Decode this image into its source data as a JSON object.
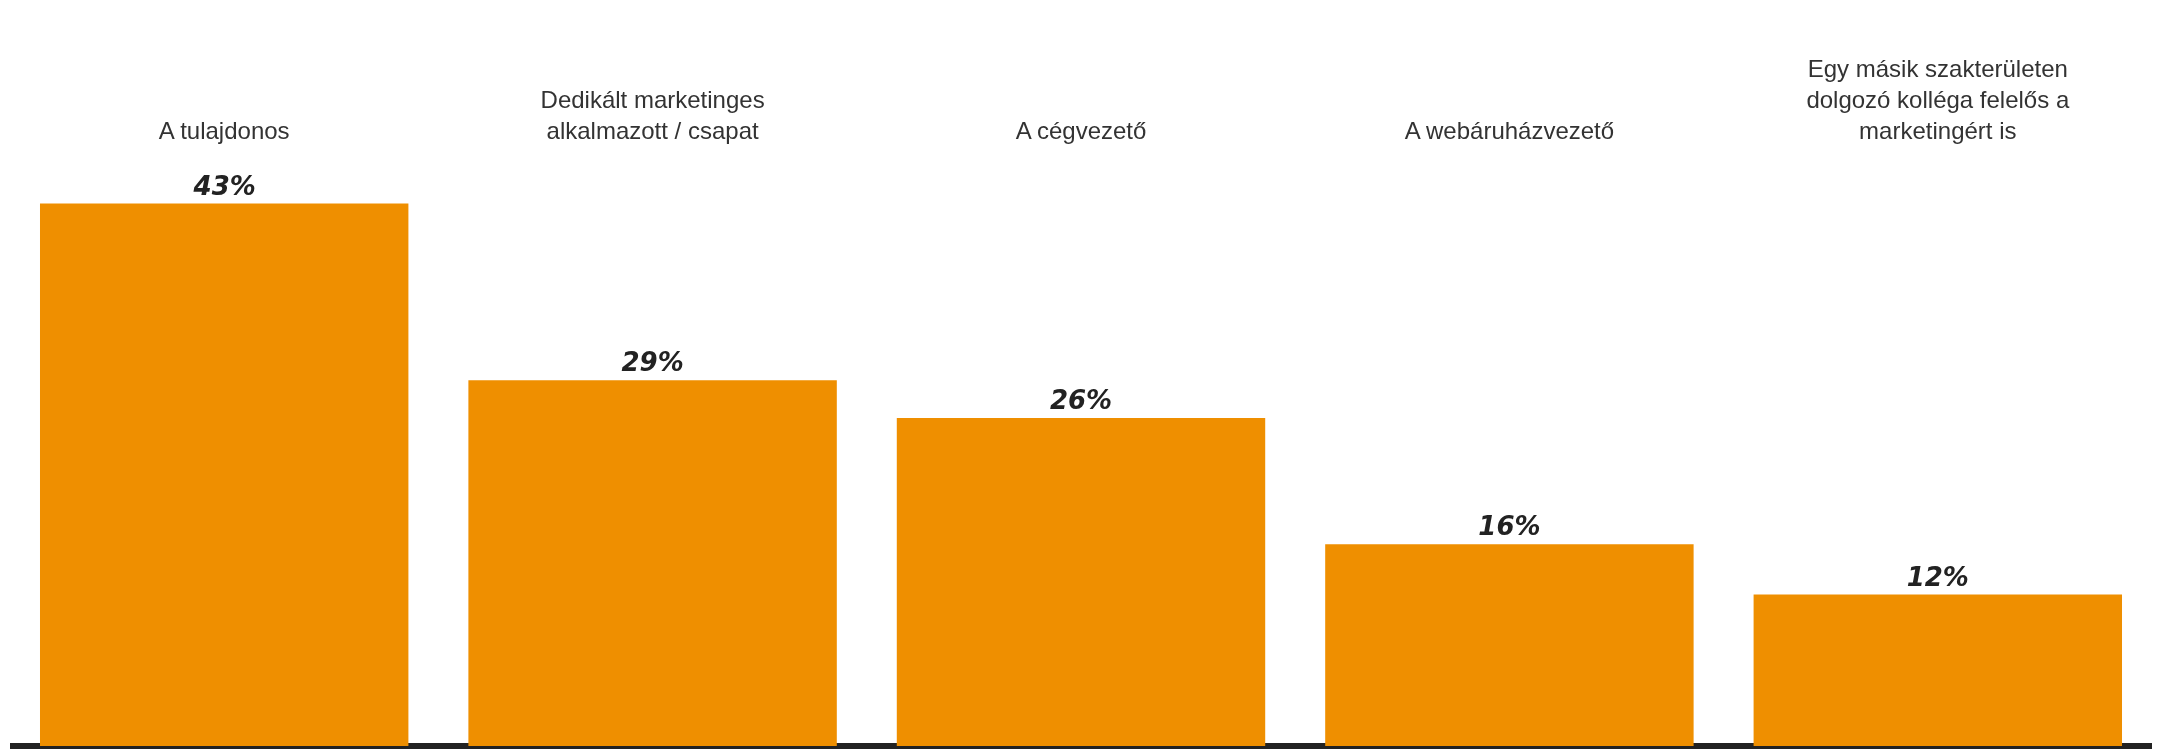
{
  "chart_data": {
    "type": "bar",
    "categories": [
      "A tulajdonos",
      "Dedikált marketinges alkalmazott / csapat",
      "A cégvezető",
      "A webáruházvezető",
      "Egy másik szakterületen dolgozó kolléga felelős a marketingért is"
    ],
    "values": [
      43,
      29,
      26,
      16,
      12
    ],
    "value_labels": [
      "43%",
      "29%",
      "26%",
      "16%",
      "12%"
    ],
    "color": "#ef8f00",
    "tick_labels": "x",
    "legend": false
  }
}
